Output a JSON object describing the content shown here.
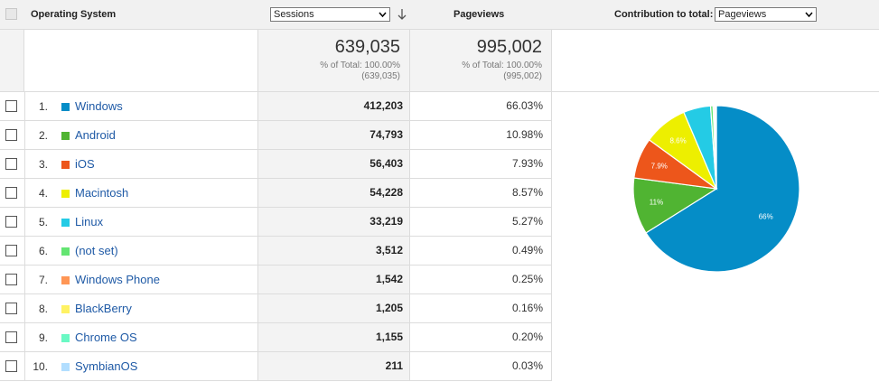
{
  "header": {
    "dimension_label": "Operating System",
    "metric_select": "Sessions",
    "secondary_metric_label": "Pageviews",
    "contribution_label": "Contribution to total:",
    "contribution_select": "Pageviews"
  },
  "totals": {
    "sessions": {
      "value": "639,035",
      "pct": "% of Total: 100.00%",
      "sub": "(639,035)"
    },
    "pageviews": {
      "value": "995,002",
      "pct": "% of Total: 100.00%",
      "sub": "(995,002)"
    }
  },
  "rows": [
    {
      "num": "1.",
      "name": "Windows",
      "color": "#058dc7",
      "sessions": "412,203",
      "pageviews": "66.03%"
    },
    {
      "num": "2.",
      "name": "Android",
      "color": "#50b432",
      "sessions": "74,793",
      "pageviews": "10.98%"
    },
    {
      "num": "3.",
      "name": "iOS",
      "color": "#ed561b",
      "sessions": "56,403",
      "pageviews": "7.93%"
    },
    {
      "num": "4.",
      "name": "Macintosh",
      "color": "#edef00",
      "sessions": "54,228",
      "pageviews": "8.57%"
    },
    {
      "num": "5.",
      "name": "Linux",
      "color": "#24cbe5",
      "sessions": "33,219",
      "pageviews": "5.27%"
    },
    {
      "num": "6.",
      "name": "(not set)",
      "color": "#64e572",
      "sessions": "3,512",
      "pageviews": "0.49%"
    },
    {
      "num": "7.",
      "name": "Windows Phone",
      "color": "#ff9655",
      "sessions": "1,542",
      "pageviews": "0.25%"
    },
    {
      "num": "8.",
      "name": "BlackBerry",
      "color": "#fff263",
      "sessions": "1,205",
      "pageviews": "0.16%"
    },
    {
      "num": "9.",
      "name": "Chrome OS",
      "color": "#6af9c4",
      "sessions": "1,155",
      "pageviews": "0.20%"
    },
    {
      "num": "10.",
      "name": "SymbianOS",
      "color": "#b2deff",
      "sessions": "211",
      "pageviews": "0.03%"
    }
  ],
  "chart_data": {
    "type": "pie",
    "categories": [
      "Windows",
      "Android",
      "iOS",
      "Macintosh",
      "Linux",
      "(not set)",
      "Windows Phone",
      "BlackBerry",
      "Chrome OS",
      "SymbianOS"
    ],
    "values": [
      66.03,
      10.98,
      7.93,
      8.57,
      5.27,
      0.49,
      0.25,
      0.16,
      0.2,
      0.03
    ],
    "slice_order": [
      "Windows",
      "Android",
      "iOS",
      "Macintosh",
      "Linux",
      "(not set)",
      "Windows Phone",
      "BlackBerry",
      "Chrome OS",
      "SymbianOS"
    ],
    "data_labels": [
      {
        "category": "Windows",
        "text": "66%"
      },
      {
        "category": "Android",
        "text": "11%"
      },
      {
        "category": "iOS",
        "text": "7.9%"
      },
      {
        "category": "Macintosh",
        "text": "8.6%"
      }
    ],
    "title": "",
    "legend": "none"
  }
}
